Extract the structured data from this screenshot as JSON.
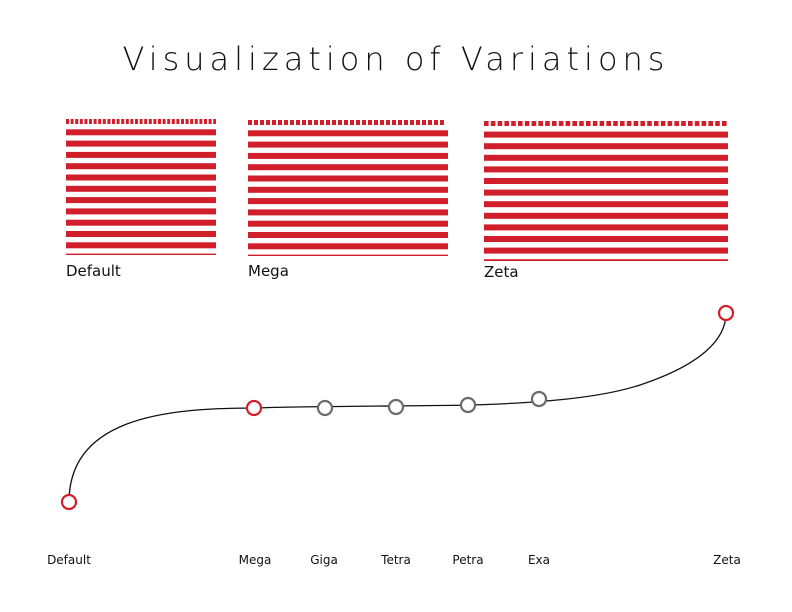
{
  "title": "Visualization of Variations",
  "swatches": [
    {
      "label": "Default"
    },
    {
      "label": "Mega"
    },
    {
      "label": "Zeta"
    }
  ],
  "colors": {
    "accent": "#d01f2a",
    "neutral": "#6b6b6b",
    "curve": "#111111"
  },
  "axis_labels": [
    "Default",
    "Mega",
    "Giga",
    "Tetra",
    "Petra",
    "Exa",
    "Zeta"
  ],
  "points": [
    {
      "name": "Default",
      "highlight": true
    },
    {
      "name": "Mega",
      "highlight": true
    },
    {
      "name": "Giga",
      "highlight": false
    },
    {
      "name": "Tetra",
      "highlight": false
    },
    {
      "name": "Petra",
      "highlight": false
    },
    {
      "name": "Exa",
      "highlight": false
    },
    {
      "name": "Zeta",
      "highlight": true
    }
  ]
}
